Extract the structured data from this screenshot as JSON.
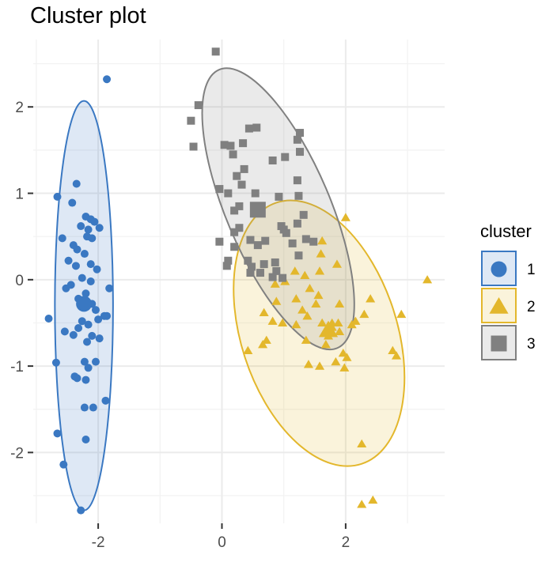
{
  "chart_data": {
    "type": "scatter",
    "title": "Cluster plot",
    "xlabel": "",
    "ylabel": "",
    "xlim": [
      -3.05,
      3.6
    ],
    "ylim": [
      -2.82,
      2.78
    ],
    "x_ticks": [
      -2,
      0,
      2
    ],
    "x_tick_labels": [
      "-2",
      "0",
      "2"
    ],
    "y_ticks": [
      -2,
      -1,
      0,
      1,
      2
    ],
    "y_tick_labels": [
      "-2",
      "-1",
      "0",
      "1",
      "2"
    ],
    "grid": true,
    "legend": {
      "title": "cluster",
      "position": "right"
    },
    "series": [
      {
        "name": "1",
        "color": "#3a78c2",
        "shape": "circle",
        "centroid": [
          -2.23,
          -0.28
        ],
        "ellipse": {
          "center": [
            -2.23,
            -0.3
          ],
          "rx": 0.47,
          "ry": 2.37,
          "angle": 0
        },
        "points": [
          [
            -1.86,
            2.32
          ],
          [
            -2.35,
            1.11
          ],
          [
            -2.66,
            0.96
          ],
          [
            -2.42,
            0.89
          ],
          [
            -2.2,
            0.73
          ],
          [
            -2.12,
            0.7
          ],
          [
            -2.06,
            0.67
          ],
          [
            -2.28,
            0.62
          ],
          [
            -2.16,
            0.58
          ],
          [
            -1.98,
            0.6
          ],
          [
            -2.58,
            0.48
          ],
          [
            -2.18,
            0.5
          ],
          [
            -2.1,
            0.48
          ],
          [
            -2.4,
            0.4
          ],
          [
            -2.34,
            0.35
          ],
          [
            -2.22,
            0.3
          ],
          [
            -2.48,
            0.22
          ],
          [
            -2.36,
            0.16
          ],
          [
            -2.12,
            0.18
          ],
          [
            -2.02,
            0.12
          ],
          [
            -2.26,
            0.02
          ],
          [
            -2.12,
            -0.02
          ],
          [
            -2.44,
            -0.06
          ],
          [
            -2.52,
            -0.1
          ],
          [
            -2.2,
            -0.16
          ],
          [
            -2.32,
            -0.22
          ],
          [
            -2.1,
            -0.28
          ],
          [
            -2.04,
            -0.35
          ],
          [
            -1.9,
            -0.42
          ],
          [
            -2.0,
            -0.46
          ],
          [
            -1.86,
            -0.42
          ],
          [
            -2.26,
            -0.48
          ],
          [
            -2.16,
            -0.52
          ],
          [
            -2.32,
            -0.56
          ],
          [
            -2.54,
            -0.6
          ],
          [
            -2.4,
            -0.64
          ],
          [
            -2.1,
            -0.65
          ],
          [
            -1.98,
            -0.68
          ],
          [
            -2.18,
            -0.72
          ],
          [
            -2.8,
            -0.45
          ],
          [
            -1.82,
            -0.1
          ],
          [
            -2.22,
            -0.95
          ],
          [
            -2.16,
            -1.02
          ],
          [
            -2.04,
            -0.95
          ],
          [
            -2.68,
            -0.96
          ],
          [
            -2.38,
            -1.12
          ],
          [
            -2.34,
            -1.14
          ],
          [
            -2.2,
            -1.16
          ],
          [
            -1.88,
            -1.4
          ],
          [
            -2.22,
            -1.48
          ],
          [
            -2.08,
            -1.48
          ],
          [
            -2.2,
            -1.85
          ],
          [
            -2.66,
            -1.78
          ],
          [
            -2.56,
            -2.14
          ],
          [
            -2.28,
            -2.67
          ]
        ]
      },
      {
        "name": "2",
        "color": "#e3b72c",
        "shape": "triangle",
        "centroid": [
          1.72,
          -0.58
        ],
        "ellipse": {
          "center": [
            1.57,
            -0.62
          ],
          "rx": 1.26,
          "ry": 1.59,
          "angle": -18
        },
        "points": [
          [
            2.0,
            0.72
          ],
          [
            3.32,
            0.0
          ],
          [
            1.62,
            0.45
          ],
          [
            1.6,
            0.3
          ],
          [
            1.86,
            0.18
          ],
          [
            1.58,
            0.1
          ],
          [
            1.18,
            0.1
          ],
          [
            1.34,
            0.05
          ],
          [
            1.02,
            -0.02
          ],
          [
            1.42,
            -0.1
          ],
          [
            1.56,
            -0.18
          ],
          [
            0.86,
            -0.05
          ],
          [
            1.2,
            -0.22
          ],
          [
            0.88,
            -0.25
          ],
          [
            1.52,
            -0.28
          ],
          [
            1.9,
            -0.28
          ],
          [
            2.4,
            -0.22
          ],
          [
            1.3,
            -0.35
          ],
          [
            0.68,
            -0.38
          ],
          [
            1.38,
            -0.42
          ],
          [
            2.3,
            -0.4
          ],
          [
            2.9,
            -0.4
          ],
          [
            2.16,
            -0.48
          ],
          [
            0.82,
            -0.48
          ],
          [
            1.2,
            -0.52
          ],
          [
            0.98,
            -0.5
          ],
          [
            1.62,
            -0.5
          ],
          [
            1.78,
            -0.5
          ],
          [
            1.88,
            -0.5
          ],
          [
            2.1,
            -0.52
          ],
          [
            0.66,
            -0.75
          ],
          [
            0.72,
            -0.7
          ],
          [
            1.36,
            -0.7
          ],
          [
            1.68,
            -0.75
          ],
          [
            1.96,
            -0.85
          ],
          [
            0.42,
            -0.82
          ],
          [
            2.02,
            -0.9
          ],
          [
            2.76,
            -0.82
          ],
          [
            2.82,
            -0.88
          ],
          [
            1.84,
            -0.95
          ],
          [
            1.4,
            -0.98
          ],
          [
            1.58,
            -1.0
          ],
          [
            1.98,
            -1.02
          ],
          [
            2.26,
            -1.9
          ],
          [
            2.26,
            -2.6
          ],
          [
            2.44,
            -2.55
          ],
          [
            1.78,
            -0.55
          ],
          [
            1.9,
            -0.6
          ],
          [
            1.72,
            -0.65
          ]
        ]
      },
      {
        "name": "3",
        "color": "#808080",
        "shape": "square",
        "centroid": [
          0.58,
          0.81
        ],
        "ellipse": {
          "center": [
            0.91,
            0.82
          ],
          "rx": 0.84,
          "ry": 1.75,
          "angle": -23
        },
        "points": [
          [
            -0.1,
            2.64
          ],
          [
            -0.38,
            2.02
          ],
          [
            -0.5,
            1.84
          ],
          [
            0.44,
            1.75
          ],
          [
            0.56,
            1.76
          ],
          [
            1.26,
            1.7
          ],
          [
            1.22,
            1.62
          ],
          [
            0.04,
            1.56
          ],
          [
            0.14,
            1.55
          ],
          [
            0.34,
            1.58
          ],
          [
            -0.46,
            1.54
          ],
          [
            0.18,
            1.45
          ],
          [
            0.82,
            1.38
          ],
          [
            1.02,
            1.42
          ],
          [
            1.26,
            1.48
          ],
          [
            0.36,
            1.28
          ],
          [
            0.24,
            1.2
          ],
          [
            1.22,
            1.15
          ],
          [
            -0.04,
            1.05
          ],
          [
            0.32,
            1.1
          ],
          [
            0.1,
            1.0
          ],
          [
            0.54,
            1.0
          ],
          [
            1.24,
            0.97
          ],
          [
            0.92,
            0.96
          ],
          [
            0.2,
            0.8
          ],
          [
            0.28,
            0.85
          ],
          [
            0.52,
            0.82
          ],
          [
            1.32,
            0.75
          ],
          [
            1.22,
            0.65
          ],
          [
            0.96,
            0.62
          ],
          [
            1.0,
            0.58
          ],
          [
            0.28,
            0.6
          ],
          [
            0.2,
            0.55
          ],
          [
            1.04,
            0.54
          ],
          [
            0.46,
            0.46
          ],
          [
            0.7,
            0.45
          ],
          [
            1.14,
            0.42
          ],
          [
            1.36,
            0.47
          ],
          [
            1.48,
            0.44
          ],
          [
            0.58,
            0.4
          ],
          [
            -0.04,
            0.44
          ],
          [
            0.2,
            0.38
          ],
          [
            1.24,
            0.28
          ],
          [
            0.42,
            0.22
          ],
          [
            0.86,
            0.2
          ],
          [
            0.08,
            0.16
          ],
          [
            0.1,
            0.22
          ],
          [
            0.68,
            0.18
          ],
          [
            0.48,
            0.15
          ],
          [
            0.46,
            0.08
          ],
          [
            0.88,
            0.1
          ],
          [
            0.82,
            0.03
          ],
          [
            0.62,
            0.08
          ],
          [
            0.98,
            0.02
          ]
        ]
      }
    ]
  }
}
